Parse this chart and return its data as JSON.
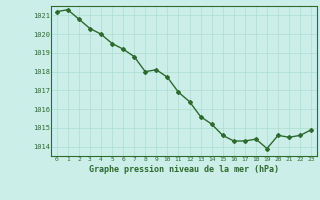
{
  "x": [
    0,
    1,
    2,
    3,
    4,
    5,
    6,
    7,
    8,
    9,
    10,
    11,
    12,
    13,
    14,
    15,
    16,
    17,
    18,
    19,
    20,
    21,
    22,
    23
  ],
  "y": [
    1021.2,
    1021.3,
    1020.8,
    1020.3,
    1020.0,
    1019.5,
    1019.2,
    1018.8,
    1018.0,
    1018.1,
    1017.7,
    1016.9,
    1016.4,
    1015.6,
    1015.2,
    1014.6,
    1014.3,
    1014.3,
    1014.4,
    1013.9,
    1014.6,
    1014.5,
    1014.6,
    1014.9
  ],
  "ylim": [
    1013.5,
    1021.5
  ],
  "yticks": [
    1014,
    1015,
    1016,
    1017,
    1018,
    1019,
    1020,
    1021
  ],
  "xlabel": "Graphe pression niveau de la mer (hPa)",
  "line_color": "#2d6a2d",
  "bg_color": "#cceee8",
  "grid_color": "#aaddcc",
  "tick_color": "#2d6a2d",
  "label_color": "#2d6a2d",
  "marker": "D",
  "markersize": 2,
  "linewidth": 1.0
}
